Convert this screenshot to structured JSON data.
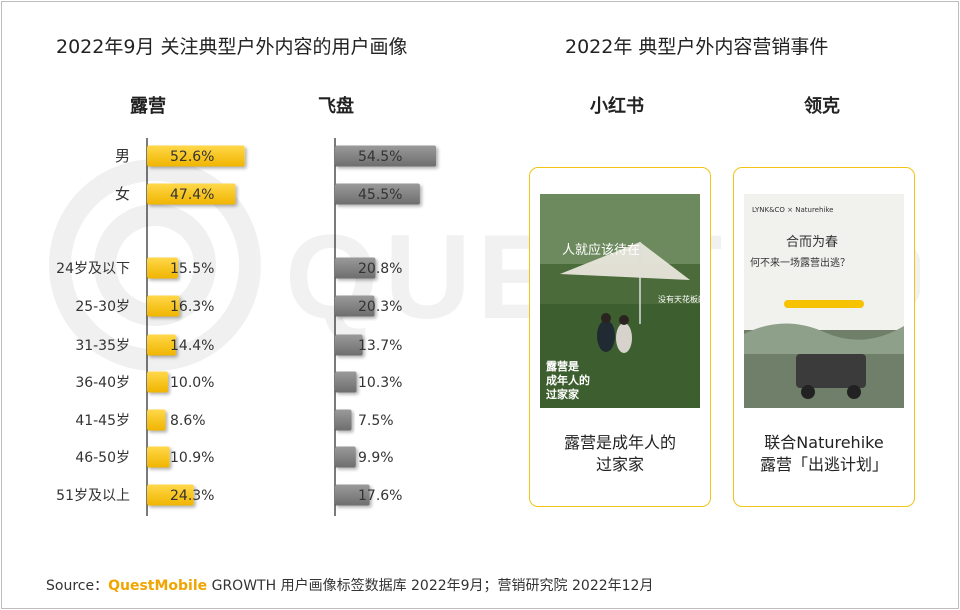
{
  "titles": {
    "left": "2022年9月 关注典型户外内容的用户画像",
    "right": "2022年 典型户外内容营销事件"
  },
  "chart_data": [
    {
      "type": "bar",
      "orientation": "horizontal",
      "title": "露营",
      "categories": [
        "男",
        "女",
        "24岁及以下",
        "25-30岁",
        "31-35岁",
        "36-40岁",
        "41-45岁",
        "46-50岁",
        "51岁及以上"
      ],
      "values": [
        52.6,
        47.4,
        15.5,
        16.3,
        14.4,
        10.0,
        8.6,
        10.9,
        24.3
      ],
      "labels": [
        "52.6%",
        "47.4%",
        "15.5%",
        "16.3%",
        "14.4%",
        "10.0%",
        "8.6%",
        "10.9%",
        "24.3%"
      ],
      "color": "#f7c200"
    },
    {
      "type": "bar",
      "orientation": "horizontal",
      "title": "飞盘",
      "categories": [
        "男",
        "女",
        "24岁及以下",
        "25-30岁",
        "31-35岁",
        "36-40岁",
        "41-45岁",
        "46-50岁",
        "51岁及以上"
      ],
      "values": [
        54.5,
        45.5,
        20.8,
        20.3,
        13.7,
        10.3,
        7.5,
        9.9,
        17.6
      ],
      "labels": [
        "54.5%",
        "45.5%",
        "20.8%",
        "20.3%",
        "13.7%",
        "10.3%",
        "7.5%",
        "9.9%",
        "17.6%"
      ],
      "color": "#7f7f7f"
    }
  ],
  "events": [
    {
      "platform": "小红书",
      "poster_text": [
        "人就应该待在",
        "没有天花板的地方",
        "露营是",
        "成年人的",
        "过家家"
      ],
      "caption": [
        "露营是成年人的",
        "过家家"
      ]
    },
    {
      "platform": "领克",
      "poster_text": [
        "LYNK&CO × Naturehike",
        "合而为春",
        "何不来一场露营出逃？"
      ],
      "caption": [
        "联合Naturehike",
        "露营「出逃计划」"
      ]
    }
  ],
  "watermark": "QUESTMOBILE",
  "source": {
    "prefix": "Source：",
    "brand": "QuestMobile",
    "rest": " GROWTH 用户画像标签数据库 2022年9月；营销研究院 2022年12月"
  },
  "colors": {
    "accent": "#f7c200",
    "secondary": "#7f7f7f",
    "card_border": "#f2c418"
  }
}
